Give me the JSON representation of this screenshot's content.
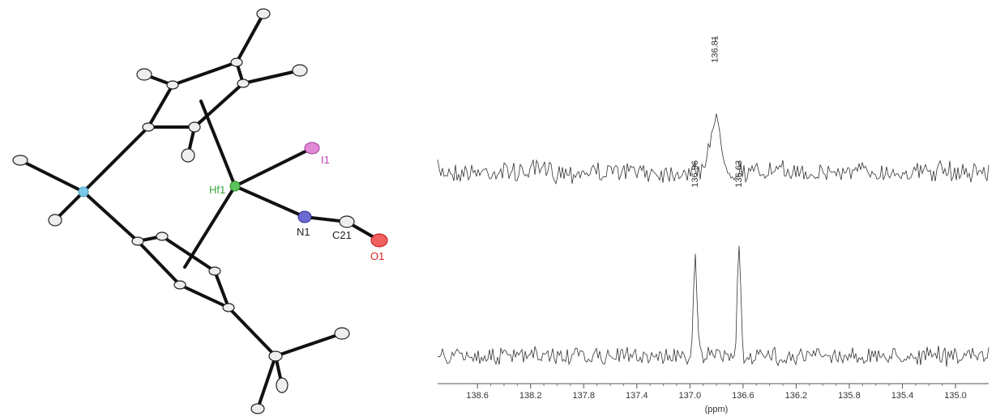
{
  "molecule": {
    "atoms": [
      "Hf1",
      "I1",
      "N1",
      "C21",
      "O1"
    ]
  },
  "chart_data": {
    "type": "line",
    "xlabel": "(ppm)",
    "xlim": [
      138.9,
      134.75
    ],
    "xticks": [
      138.6,
      138.2,
      137.8,
      137.4,
      {
        "value": 137,
        "label": "137.0"
      },
      136.6,
      136.2,
      135.8,
      135.4,
      {
        "value": 135,
        "label": "135.0"
      }
    ],
    "spectra": [
      {
        "peaks": [
          136.81
        ]
      },
      {
        "peaks": [
          136.96,
          136.63
        ]
      }
    ]
  }
}
